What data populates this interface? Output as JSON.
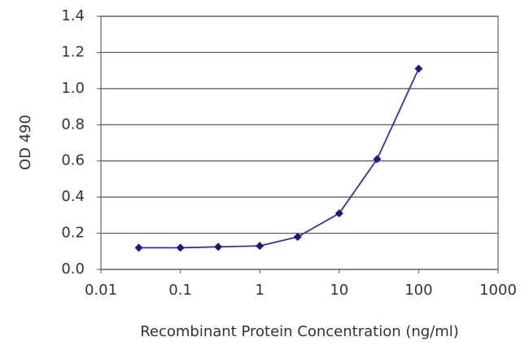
{
  "chart_data": {
    "type": "line",
    "x_label": "Recombinant Protein Concentration (ng/ml)",
    "y_label": "OD 490",
    "x": [
      0.03,
      0.1,
      0.3,
      1,
      3,
      10,
      30,
      100
    ],
    "values": [
      0.12,
      0.12,
      0.125,
      0.13,
      0.18,
      0.31,
      0.61,
      1.11
    ],
    "color": "#33339a",
    "marker_color": "#1a1a80",
    "xscale": "log",
    "xlim": [
      0.01,
      1000
    ],
    "xticks": [
      0.01,
      0.1,
      1,
      10,
      100,
      1000
    ],
    "ylim": [
      0,
      1.4
    ],
    "yticks": [
      {
        "value": 0,
        "label": "0.0"
      },
      0.2,
      0.4,
      0.6,
      0.8,
      {
        "value": 1,
        "label": "1.0"
      },
      1.2,
      1.4
    ],
    "grid": true
  }
}
